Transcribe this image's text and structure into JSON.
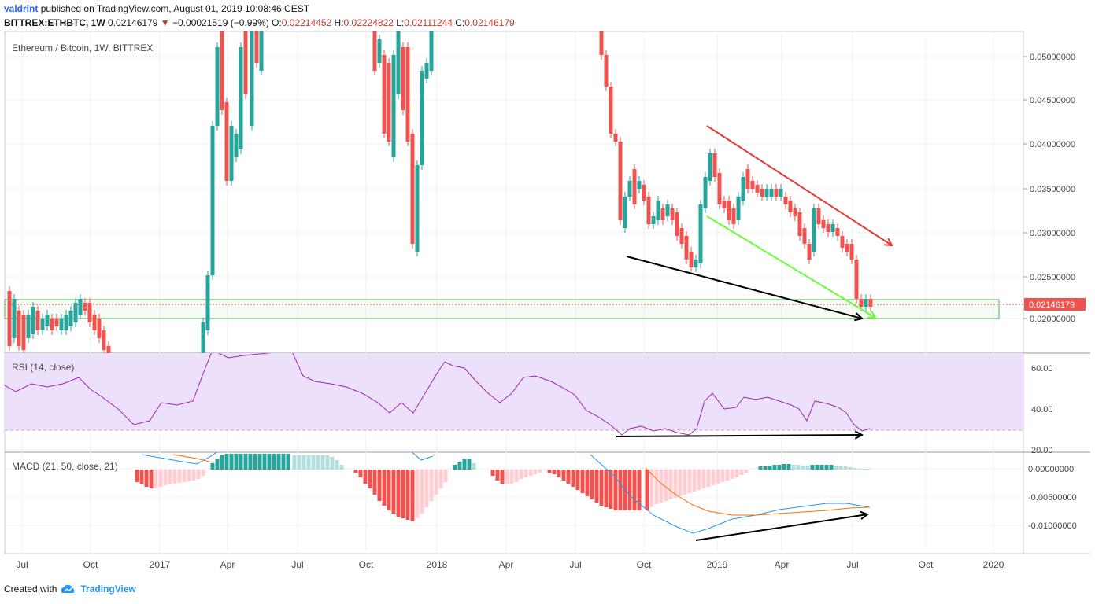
{
  "header": {
    "user": "valdrint",
    "published_text": "published on TradingView.com, August 01, 2019 10:08:46 CEST",
    "symbol": "BITTREX:ETHBTC, 1W",
    "last": "0.02146179",
    "change": "−0.00021519 (−0.99%)",
    "o_label": "O:",
    "o_value": "0.02214452",
    "h_label": "H:",
    "h_value": "0.02224822",
    "l_label": "L:",
    "l_value": "0.02111244",
    "c_label": "C:",
    "c_value": "0.02146179"
  },
  "price_pane": {
    "title": "Ethereum / Bitcoin, 1W, BITTREX",
    "y_ticks": [
      "0.05000000",
      "0.04500000",
      "0.04000000",
      "0.03500000",
      "0.03000000",
      "0.02500000",
      "0.02000000"
    ],
    "last_price_label": "0.02146179"
  },
  "rsi_pane": {
    "title": "RSI (14, close)",
    "y_ticks": [
      "60.00",
      "40.00",
      "20.00"
    ]
  },
  "macd_pane": {
    "title": "MACD (21, 50, close, 21)",
    "y_ticks": [
      "0.00000000",
      "-0.00500000",
      "-0.01000000"
    ]
  },
  "x_axis": {
    "labels": [
      "Jul",
      "Oct",
      "2017",
      "Apr",
      "Jul",
      "Oct",
      "2018",
      "Apr",
      "Jul",
      "Oct",
      "2019",
      "Apr",
      "Jul",
      "Oct",
      "2020"
    ]
  },
  "footer": {
    "created_with": "Created with",
    "brand": "TradingView"
  },
  "colors": {
    "up": "#26a69a",
    "down": "#ef5350",
    "rsi_line": "#9c27b0",
    "rsi_band": "#ede0fb",
    "macd_line": "#2196f3",
    "signal_line": "#ff6d00",
    "support_zone": "#4caf50",
    "resistance_line": "#e53935",
    "support_line": "#66ff33",
    "divergence_line": "#000000"
  },
  "icons": {
    "change_arrow": "triangle-down-icon",
    "brand_logo": "tradingview-cloud-icon"
  }
}
